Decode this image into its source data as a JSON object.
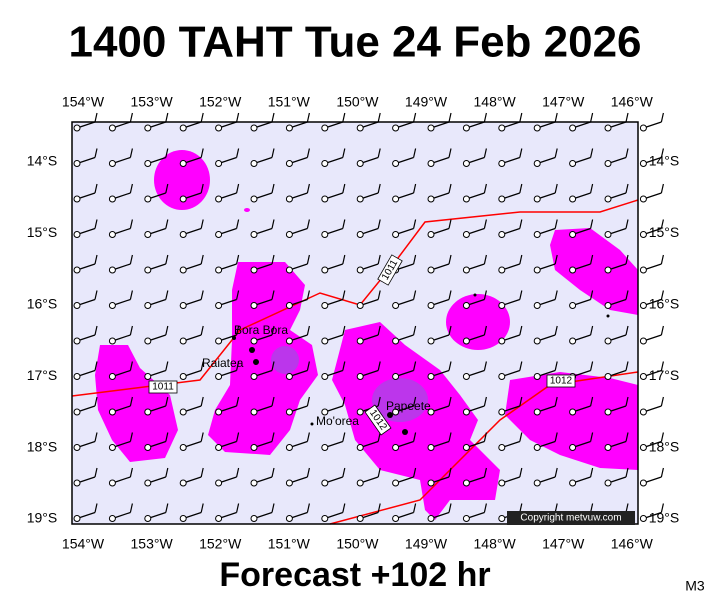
{
  "title": "1400 TAHT Tue 24 Feb 2026",
  "longitudes": [
    "154°W",
    "153°W",
    "152°W",
    "151°W",
    "150°W",
    "149°W",
    "148°W",
    "147°W",
    "146°W"
  ],
  "latitudes": [
    "14°S",
    "15°S",
    "16°S",
    "17°S",
    "18°S",
    "19°S"
  ],
  "places": [
    {
      "label": "Bora Bora"
    },
    {
      "label": "Raiatea"
    },
    {
      "label": "Mo'orea"
    },
    {
      "label": "Papeete"
    }
  ],
  "isobar_labels": [
    "1011",
    "1011",
    "1012",
    "1012"
  ],
  "copyright": "Copyright metvuw.com",
  "footer": "Forecast +102 hr",
  "model": "M3"
}
